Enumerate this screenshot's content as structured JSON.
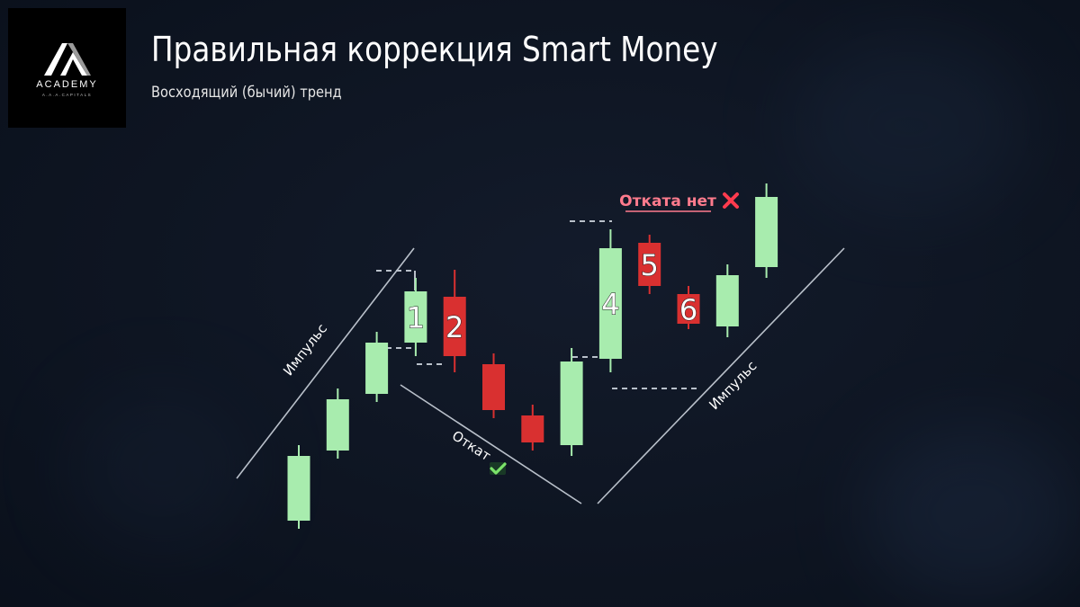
{
  "logo": {
    "brand": "ACADEMY",
    "tagline": "A.A.A.CAPITALS"
  },
  "header": {
    "title": "Правильная коррекция Smart Money",
    "subtitle": "Восходящий (бычий) тренд"
  },
  "colors": {
    "bull": "#a8ecae",
    "bear": "#d93030",
    "line": "#b9c0ca",
    "no_pullback": "#ff7b8d",
    "cross": "#ff3b4e",
    "check": "#7be36a"
  },
  "icons": {
    "cross": "cross-icon",
    "check": "checkmark-icon",
    "logo": "academy-logo-icon"
  },
  "chart_data": {
    "type": "candlestick",
    "title": "Правильная коррекция Smart Money",
    "subtitle": "Восходящий (бычий) тренд",
    "xlabel": "",
    "ylabel": "",
    "ylim": [
      0,
      100
    ],
    "candles": [
      {
        "dir": "up",
        "open": 2,
        "close": 26,
        "high": 30,
        "low": -1,
        "label": ""
      },
      {
        "dir": "up",
        "open": 28,
        "close": 47,
        "high": 51,
        "low": 25,
        "label": ""
      },
      {
        "dir": "up",
        "open": 49,
        "close": 68,
        "high": 72,
        "low": 46,
        "label": ""
      },
      {
        "dir": "up",
        "open": 68,
        "close": 87,
        "high": 92,
        "low": 63,
        "label": "1"
      },
      {
        "dir": "down",
        "open": 85,
        "close": 63,
        "high": 95,
        "low": 57,
        "label": "2"
      },
      {
        "dir": "down",
        "open": 60,
        "close": 43,
        "high": 64,
        "low": 40,
        "label": ""
      },
      {
        "dir": "down",
        "open": 41,
        "close": 31,
        "high": 45,
        "low": 28,
        "label": ""
      },
      {
        "dir": "up",
        "open": 30,
        "close": 61,
        "high": 66,
        "low": 26,
        "label": ""
      },
      {
        "dir": "up",
        "open": 62,
        "close": 103,
        "high": 110,
        "low": 57,
        "label": "4"
      },
      {
        "dir": "down",
        "open": 105,
        "close": 89,
        "high": 108,
        "low": 86,
        "label": "5"
      },
      {
        "dir": "down",
        "open": 86,
        "close": 75,
        "high": 89,
        "low": 73,
        "label": "6"
      },
      {
        "dir": "up",
        "open": 74,
        "close": 93,
        "high": 97,
        "low": 70,
        "label": ""
      },
      {
        "dir": "up",
        "open": 96,
        "close": 122,
        "high": 127,
        "low": 92,
        "label": ""
      }
    ],
    "annotations": {
      "impulse_left": "Импульс",
      "pullback": "Откат",
      "impulse_right": "Импульс",
      "no_pullback": "Отката нет"
    }
  }
}
